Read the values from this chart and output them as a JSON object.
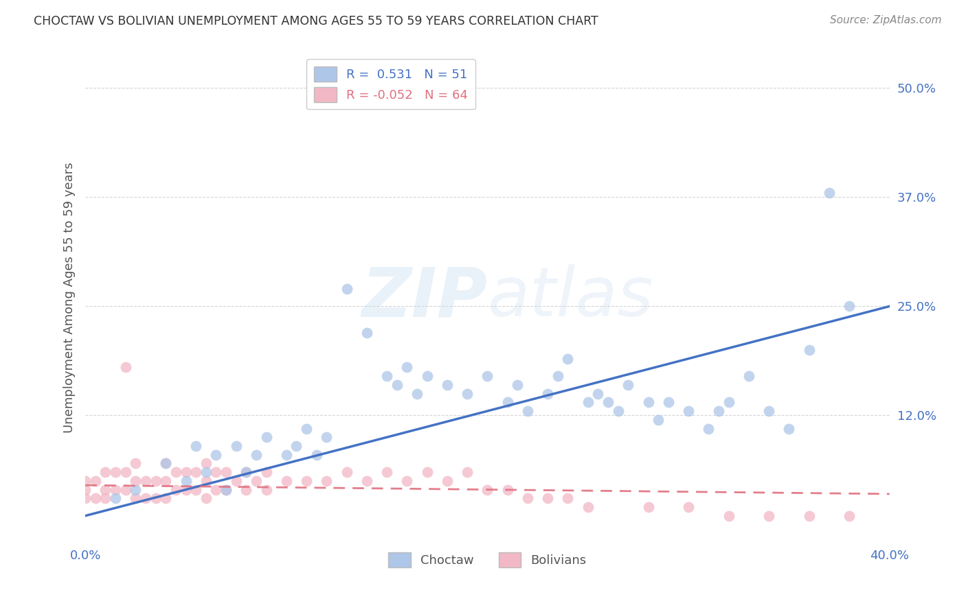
{
  "title": "CHOCTAW VS BOLIVIAN UNEMPLOYMENT AMONG AGES 55 TO 59 YEARS CORRELATION CHART",
  "source": "Source: ZipAtlas.com",
  "ylabel": "Unemployment Among Ages 55 to 59 years",
  "xlim": [
    0.0,
    0.4
  ],
  "ylim": [
    -0.02,
    0.54
  ],
  "ytick_vals": [
    0.125,
    0.25,
    0.375,
    0.5
  ],
  "background_color": "#ffffff",
  "grid_color": "#d0d0d0",
  "choctaw_color": "#aec6e8",
  "bolivian_color": "#f2b8c6",
  "choctaw_line_color": "#4472c4",
  "bolivian_line_color": "#e07080",
  "watermark_color": "#d0e4f0",
  "legend_R_choctaw": " 0.531",
  "legend_N_choctaw": "51",
  "legend_R_bolivian": "-0.052",
  "legend_N_bolivian": "64",
  "choctaw_x": [
    0.015,
    0.025,
    0.04,
    0.05,
    0.055,
    0.06,
    0.065,
    0.07,
    0.075,
    0.08,
    0.085,
    0.09,
    0.1,
    0.105,
    0.11,
    0.115,
    0.12,
    0.13,
    0.14,
    0.15,
    0.155,
    0.16,
    0.165,
    0.17,
    0.18,
    0.19,
    0.2,
    0.21,
    0.215,
    0.22,
    0.23,
    0.235,
    0.24,
    0.25,
    0.255,
    0.26,
    0.265,
    0.27,
    0.28,
    0.285,
    0.29,
    0.3,
    0.31,
    0.315,
    0.32,
    0.33,
    0.34,
    0.35,
    0.36,
    0.37,
    0.38
  ],
  "choctaw_y": [
    0.03,
    0.04,
    0.07,
    0.05,
    0.09,
    0.06,
    0.08,
    0.04,
    0.09,
    0.06,
    0.08,
    0.1,
    0.08,
    0.09,
    0.11,
    0.08,
    0.1,
    0.27,
    0.22,
    0.17,
    0.16,
    0.18,
    0.15,
    0.17,
    0.16,
    0.15,
    0.17,
    0.14,
    0.16,
    0.13,
    0.15,
    0.17,
    0.19,
    0.14,
    0.15,
    0.14,
    0.13,
    0.16,
    0.14,
    0.12,
    0.14,
    0.13,
    0.11,
    0.13,
    0.14,
    0.17,
    0.13,
    0.11,
    0.2,
    0.38,
    0.25
  ],
  "bolivian_x": [
    0.0,
    0.0,
    0.0,
    0.005,
    0.005,
    0.01,
    0.01,
    0.01,
    0.015,
    0.015,
    0.02,
    0.02,
    0.025,
    0.025,
    0.025,
    0.03,
    0.03,
    0.035,
    0.035,
    0.04,
    0.04,
    0.04,
    0.045,
    0.045,
    0.05,
    0.05,
    0.055,
    0.055,
    0.06,
    0.06,
    0.06,
    0.065,
    0.065,
    0.07,
    0.07,
    0.075,
    0.08,
    0.08,
    0.085,
    0.09,
    0.09,
    0.1,
    0.11,
    0.12,
    0.13,
    0.14,
    0.15,
    0.16,
    0.17,
    0.18,
    0.19,
    0.2,
    0.21,
    0.22,
    0.23,
    0.24,
    0.25,
    0.28,
    0.3,
    0.32,
    0.34,
    0.36,
    0.38,
    0.02
  ],
  "bolivian_y": [
    0.03,
    0.04,
    0.05,
    0.03,
    0.05,
    0.03,
    0.04,
    0.06,
    0.04,
    0.06,
    0.04,
    0.06,
    0.03,
    0.05,
    0.07,
    0.03,
    0.05,
    0.03,
    0.05,
    0.03,
    0.05,
    0.07,
    0.04,
    0.06,
    0.04,
    0.06,
    0.04,
    0.06,
    0.03,
    0.05,
    0.07,
    0.04,
    0.06,
    0.04,
    0.06,
    0.05,
    0.04,
    0.06,
    0.05,
    0.04,
    0.06,
    0.05,
    0.05,
    0.05,
    0.06,
    0.05,
    0.06,
    0.05,
    0.06,
    0.05,
    0.06,
    0.04,
    0.04,
    0.03,
    0.03,
    0.03,
    0.02,
    0.02,
    0.02,
    0.01,
    0.01,
    0.01,
    0.01,
    0.18
  ],
  "choctaw_line_x": [
    0.0,
    0.4
  ],
  "choctaw_line_y": [
    0.01,
    0.25
  ],
  "bolivian_line_x": [
    0.0,
    0.4
  ],
  "bolivian_line_y": [
    0.045,
    0.035
  ]
}
